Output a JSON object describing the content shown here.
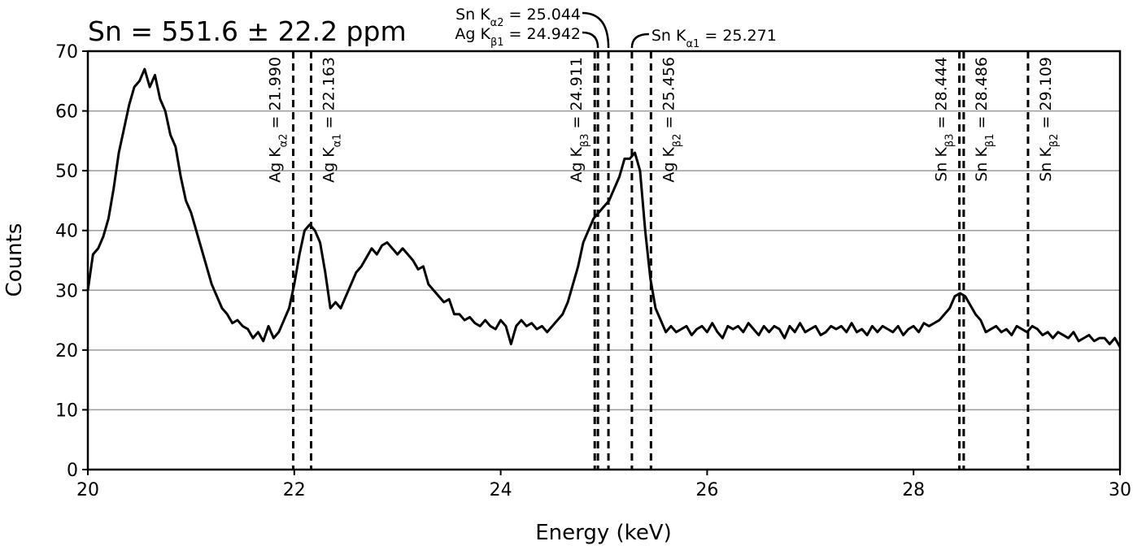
{
  "chart_data": {
    "type": "line",
    "title": "Sn = 551.6 ± 22.2 ppm",
    "x_label": "Energy (keV)",
    "y_label": "Counts",
    "xlim": [
      20,
      30
    ],
    "ylim": [
      0,
      70
    ],
    "xticks": [
      20,
      22,
      24,
      26,
      28,
      30
    ],
    "yticks": [
      0,
      10,
      20,
      30,
      40,
      50,
      60,
      70
    ],
    "grid": true,
    "series": [
      {
        "color": "#000000",
        "x": [
          20,
          20.05,
          20.1,
          20.15,
          20.2,
          20.25,
          20.3,
          20.35,
          20.4,
          20.45,
          20.5,
          20.55,
          20.6,
          20.65,
          20.7,
          20.75,
          20.8,
          20.85,
          20.9,
          20.95,
          21,
          21.05,
          21.1,
          21.15,
          21.2,
          21.25,
          21.3,
          21.35,
          21.4,
          21.45,
          21.5,
          21.55,
          21.6,
          21.65,
          21.7,
          21.75,
          21.8,
          21.85,
          21.9,
          21.95,
          22,
          22.05,
          22.1,
          22.15,
          22.2,
          22.25,
          22.3,
          22.35,
          22.4,
          22.45,
          22.5,
          22.55,
          22.6,
          22.65,
          22.7,
          22.75,
          22.8,
          22.85,
          22.9,
          22.95,
          23,
          23.05,
          23.1,
          23.15,
          23.2,
          23.25,
          23.3,
          23.35,
          23.4,
          23.45,
          23.5,
          23.55,
          23.6,
          23.65,
          23.7,
          23.75,
          23.8,
          23.85,
          23.9,
          23.95,
          24,
          24.05,
          24.1,
          24.15,
          24.2,
          24.25,
          24.3,
          24.35,
          24.4,
          24.45,
          24.5,
          24.55,
          24.6,
          24.65,
          24.7,
          24.75,
          24.8,
          24.85,
          24.9,
          24.95,
          25,
          25.05,
          25.1,
          25.15,
          25.2,
          25.25,
          25.3,
          25.35,
          25.4,
          25.45,
          25.5,
          25.55,
          25.6,
          25.65,
          25.7,
          25.75,
          25.8,
          25.85,
          25.9,
          25.95,
          26,
          26.05,
          26.1,
          26.15,
          26.2,
          26.25,
          26.3,
          26.35,
          26.4,
          26.45,
          26.5,
          26.55,
          26.6,
          26.65,
          26.7,
          26.75,
          26.8,
          26.85,
          26.9,
          26.95,
          27,
          27.05,
          27.1,
          27.15,
          27.2,
          27.25,
          27.3,
          27.35,
          27.4,
          27.45,
          27.5,
          27.55,
          27.6,
          27.65,
          27.7,
          27.75,
          27.8,
          27.85,
          27.9,
          27.95,
          28,
          28.05,
          28.1,
          28.15,
          28.2,
          28.25,
          28.3,
          28.35,
          28.4,
          28.45,
          28.5,
          28.55,
          28.6,
          28.65,
          28.7,
          28.75,
          28.8,
          28.85,
          28.9,
          28.95,
          29,
          29.05,
          29.1,
          29.15,
          29.2,
          29.25,
          29.3,
          29.35,
          29.4,
          29.45,
          29.5,
          29.55,
          29.6,
          29.65,
          29.7,
          29.75,
          29.8,
          29.85,
          29.9,
          29.95,
          30
        ],
        "values": [
          30,
          36,
          37,
          39,
          42,
          47,
          53,
          57,
          61,
          64,
          65,
          67,
          64,
          66,
          62,
          60,
          56,
          54,
          49,
          45,
          43,
          40,
          37,
          34,
          31,
          29,
          27,
          26,
          24.5,
          25,
          24,
          23.5,
          22,
          23,
          21.5,
          24,
          22,
          23,
          25,
          27,
          31,
          36,
          40,
          41,
          40,
          38,
          33,
          27,
          28,
          27,
          29,
          31,
          33,
          34,
          35.5,
          37,
          36,
          37.5,
          38,
          37,
          36,
          37,
          36,
          35,
          33.5,
          34,
          31,
          30,
          29,
          28,
          28.5,
          26,
          26,
          25,
          25.5,
          24.5,
          24,
          25,
          24,
          23.5,
          25,
          24,
          21,
          24,
          25,
          24,
          24.5,
          23.5,
          24,
          23,
          24,
          25,
          26,
          28,
          31,
          34,
          38,
          40,
          42,
          43,
          44,
          45,
          47,
          49,
          52,
          52,
          53,
          50,
          40,
          32,
          27,
          25,
          23,
          24,
          23,
          23.5,
          24,
          22.5,
          23.5,
          24,
          23,
          24.5,
          23,
          22,
          24,
          23.5,
          24,
          23,
          24.5,
          23.5,
          22.5,
          24,
          23,
          24,
          23.5,
          22,
          24,
          23,
          24.5,
          23,
          23.5,
          24,
          22.5,
          23,
          24,
          23.5,
          24,
          23,
          24.5,
          23,
          23.5,
          22.5,
          24,
          23,
          24,
          23.5,
          23,
          24,
          22.5,
          23.5,
          24,
          23,
          24.5,
          24,
          24.5,
          25,
          26,
          27,
          29,
          29.5,
          29,
          27.5,
          26,
          25,
          23,
          23.5,
          24,
          23,
          23.5,
          22.5,
          24,
          23.5,
          23,
          24,
          23.5,
          22.5,
          23,
          22,
          23,
          22.5,
          22,
          23,
          21.5,
          22,
          22.5,
          21.5,
          22,
          22,
          21,
          22,
          20.5
        ]
      }
    ],
    "markers": [
      {
        "x": 21.99,
        "prefix": "Ag K",
        "sub": "α2",
        "suffix": " = 21.990"
      },
      {
        "x": 22.163,
        "prefix": "Ag K",
        "sub": "α1",
        "suffix": " = 22.163"
      },
      {
        "x": 24.911,
        "prefix": "Ag K",
        "sub": "β3",
        "suffix": " = 24.911"
      },
      {
        "x": 25.456,
        "prefix": "Ag K",
        "sub": "β2",
        "suffix": " = 25.456"
      },
      {
        "x": 28.444,
        "prefix": "Sn K",
        "sub": "β3",
        "suffix": " = 28.444"
      },
      {
        "x": 28.486,
        "prefix": "Sn K",
        "sub": "β1",
        "suffix": " = 28.486"
      },
      {
        "x": 29.109,
        "prefix": "Sn K",
        "sub": "β2",
        "suffix": " = 29.109"
      }
    ],
    "callouts": [
      {
        "x": 24.942,
        "prefix": "Ag K",
        "sub": "β1",
        "suffix": " = 24.942"
      },
      {
        "x": 25.044,
        "prefix": "Sn K",
        "sub": "α2",
        "suffix": " = 25.044"
      },
      {
        "x": 25.271,
        "prefix": "Sn K",
        "sub": "α1",
        "suffix": " = 25.271"
      }
    ]
  }
}
